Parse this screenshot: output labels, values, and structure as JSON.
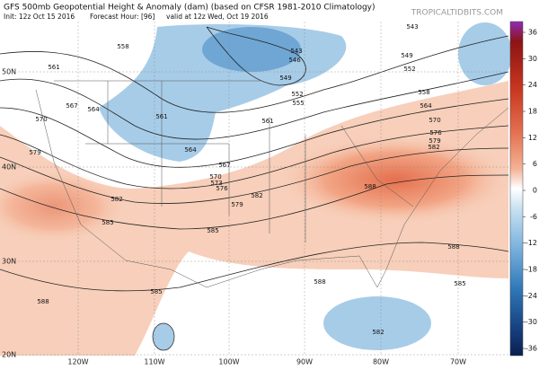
{
  "header": {
    "title": "GFS 500mb Geopotential Height & Anomaly (dam) (based on CFSR 1981-2010 Climatology)",
    "init": "Init: 12z Oct 15 2016",
    "forecast_hour": "Forecast Hour: [96]",
    "valid": "valid at 12z Wed, Oct 19 2016",
    "source": "TROPICALTIDBITS.COM"
  },
  "colorbar": {
    "ticks": [
      36,
      30,
      24,
      18,
      12,
      6,
      0,
      -6,
      -12,
      -18,
      -24,
      -30,
      -36
    ]
  },
  "latitudes": [
    "50N",
    "40N",
    "30N",
    "20N"
  ],
  "longitudes": [
    "120W",
    "110W",
    "100W",
    "90W",
    "80W",
    "70W"
  ],
  "contour_labels": [
    "558",
    "561",
    "567",
    "564",
    "570",
    "579",
    "582",
    "585",
    "588",
    "585",
    "582",
    "579",
    "576",
    "573",
    "570",
    "567",
    "564",
    "561",
    "561",
    "555",
    "552",
    "549",
    "546",
    "543",
    "588",
    "588",
    "588",
    "585",
    "585",
    "582",
    "543",
    "549",
    "552",
    "558",
    "564",
    "570",
    "576",
    "579",
    "582"
  ]
}
